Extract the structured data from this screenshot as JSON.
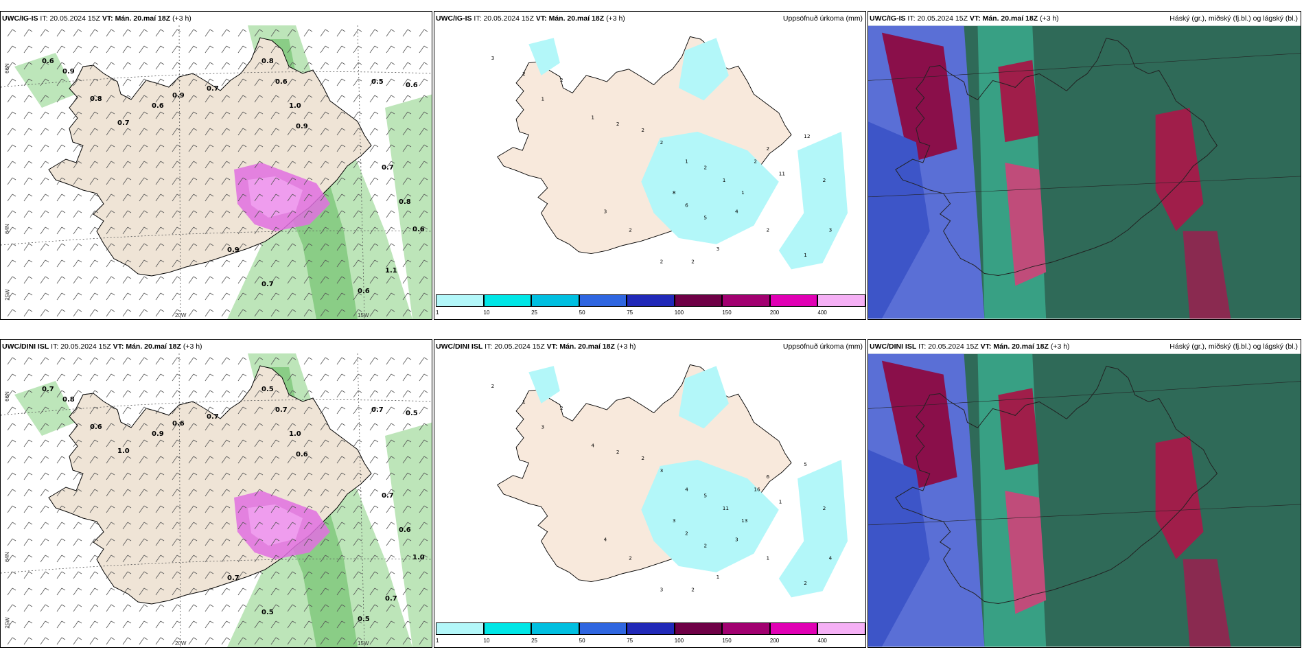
{
  "rows": [
    {
      "model": "UWC/IG-IS",
      "it_label": "IT:",
      "it_value": "20.05.2024 15Z",
      "vt_label": "VT:",
      "vt_value": "Mán. 20.maí 18Z",
      "lead": "(+3 h)"
    },
    {
      "model": "UWC/DINI ISL",
      "it_label": "IT:",
      "it_value": "20.05.2024 15Z",
      "vt_label": "VT:",
      "vt_value": "Mán. 20.maí 18Z",
      "lead": "(+3 h)"
    }
  ],
  "precip_title": "Uppsöfnuð úrkoma (mm)",
  "cloud_title": "Háský (gr.), miðský (fj.bl.) og lágský (bl.)",
  "lat_labels": [
    "66N",
    "64N",
    "25W"
  ],
  "lon_labels": [
    "20W",
    "15W"
  ],
  "colorbar": {
    "labels": [
      "1",
      "10",
      "25",
      "50",
      "75",
      "100",
      "150",
      "200",
      "400"
    ],
    "colors": [
      "#b3f7f9",
      "#00e6e6",
      "#00bfe0",
      "#2f66e0",
      "#2129b8",
      "#6e0046",
      "#a10070",
      "#e000b4",
      "#f5b0f5"
    ]
  },
  "wind_values_top": [
    "0.6",
    "0.9",
    "0.8",
    "0.7",
    "0.6",
    "0.9",
    "0.7",
    "0.8",
    "0.6",
    "1.0",
    "0.9",
    "0.5",
    "0.6",
    "0.7",
    "0.8",
    "0.6",
    "1.1",
    "0.6",
    "0.9",
    "0.7"
  ],
  "wind_values_bottom": [
    "0.7",
    "0.8",
    "0.6",
    "1.0",
    "0.9",
    "0.6",
    "0.7",
    "0.5",
    "0.7",
    "1.0",
    "0.6",
    "0.7",
    "0.5",
    "0.7",
    "0.6",
    "1.0",
    "0.7",
    "0.5",
    "0.7",
    "0.5"
  ],
  "precip_values_top": [
    "3",
    "2",
    "1",
    "2",
    "1",
    "2",
    "2",
    "2",
    "1",
    "2",
    "1",
    "1",
    "2",
    "2",
    "4",
    "5",
    "6",
    "8",
    "11",
    "12",
    "2",
    "3",
    "1",
    "2",
    "3",
    "2",
    "2",
    "2",
    "3"
  ],
  "precip_values_bottom": [
    "2",
    "1",
    "3",
    "2",
    "4",
    "2",
    "2",
    "3",
    "4",
    "5",
    "11",
    "13",
    "16",
    "6",
    "3",
    "2",
    "2",
    "3",
    "1",
    "5",
    "2",
    "4",
    "2",
    "1",
    "1",
    "2",
    "3",
    "2",
    "4"
  ]
}
